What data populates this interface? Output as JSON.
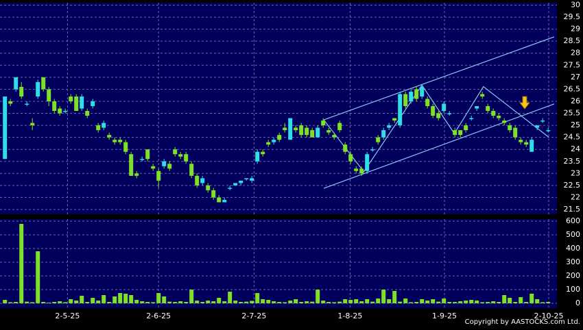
{
  "chart_data": {
    "type": "candlestick",
    "copyright": "Copyright by AASTOCKS.com Ltd.",
    "up_color": "#33dde8",
    "down_color": "#7ee02a",
    "volume_color": "#7ee02a",
    "line_color": "#8ec8f0",
    "grid": true,
    "xlim": [
      -0.9,
      100.6
    ],
    "xticks": [
      {
        "value": 11.4,
        "label": "2-5-25"
      },
      {
        "value": 28,
        "label": "2-6-25"
      },
      {
        "value": 45.4,
        "label": "2-7-25"
      },
      {
        "value": 62.9,
        "label": "1-8-25"
      },
      {
        "value": 80.1,
        "label": "1-9-25"
      },
      {
        "value": 99.1,
        "label": "2-10-25"
      }
    ],
    "ylim": [
      21.3,
      30.1
    ],
    "yticks": [
      21.5,
      22,
      22.5,
      23,
      23.5,
      24,
      24.5,
      25,
      25.5,
      26,
      26.5,
      27,
      27.5,
      28,
      28.5,
      29,
      29.5,
      30
    ],
    "y2lim": [
      0,
      615
    ],
    "y2ticks": [
      0,
      100,
      200,
      300,
      400,
      500,
      600
    ],
    "open": [
      23.6,
      26.0,
      26.5,
      26.6,
      25.9,
      25.1,
      26.2,
      27.0,
      26.5,
      26.0,
      25.7,
      25.6,
      26.2,
      26.2,
      25.7,
      25.6,
      25.8,
      25.0,
      24.9,
      24.6,
      24.4,
      24.4,
      24.3,
      23.8,
      23.0,
      23.6,
      24.0,
      23.3,
      23.1,
      23.3,
      23.4,
      24.0,
      23.8,
      23.8,
      23.4,
      22.9,
      22.6,
      22.5,
      22.3,
      22.0,
      21.8,
      22.4,
      22.5,
      22.6,
      22.8,
      22.7,
      23.5,
      23.9,
      24.3,
      24.3,
      24.6,
      24.9,
      24.4,
      24.9,
      25.0,
      24.9,
      24.8,
      24.5,
      25.2,
      24.8,
      24.6,
      25.1,
      24.2,
      23.8,
      23.2,
      23.2,
      23.1,
      24.0,
      24.5,
      24.5,
      24.9,
      25.3,
      25.0,
      26.3,
      26.0,
      26.5,
      26.2,
      26.1,
      25.8,
      25.5,
      25.6,
      25.5,
      24.8,
      24.8,
      25.0,
      25.3,
      25.7,
      26.3,
      25.8,
      25.6,
      25.4,
      25.2,
      25.0,
      24.9,
      24.4,
      24.3,
      23.9,
      24.9,
      25.2,
      24.8
    ],
    "high": [
      26.2,
      26.1,
      27.0,
      26.8,
      26.0,
      25.3,
      26.9,
      27.0,
      26.6,
      26.1,
      25.8,
      25.7,
      26.3,
      26.3,
      26.3,
      25.7,
      26.1,
      25.1,
      25.2,
      24.7,
      24.5,
      24.5,
      24.4,
      23.9,
      23.1,
      23.7,
      24.0,
      23.4,
      23.2,
      23.6,
      23.5,
      24.1,
      23.9,
      23.9,
      23.5,
      23.0,
      22.9,
      22.6,
      22.4,
      22.1,
      22.0,
      22.5,
      22.6,
      22.7,
      22.8,
      22.9,
      24.0,
      24.0,
      24.4,
      24.5,
      24.7,
      25.1,
      25.3,
      25.0,
      25.1,
      25.0,
      24.9,
      25.0,
      25.3,
      24.9,
      24.7,
      25.2,
      24.3,
      23.9,
      23.3,
      23.3,
      23.9,
      24.1,
      24.6,
      24.9,
      25.1,
      25.3,
      26.4,
      26.4,
      26.5,
      26.6,
      26.7,
      26.2,
      25.9,
      25.6,
      26.0,
      25.6,
      24.9,
      24.8,
      25.1,
      25.4,
      25.8,
      26.4,
      25.9,
      25.7,
      25.5,
      25.3,
      25.1,
      25.0,
      24.5,
      24.4,
      24.5,
      25.0,
      25.3,
      24.9
    ],
    "low": [
      23.6,
      25.8,
      26.4,
      26.1,
      25.8,
      24.8,
      26.1,
      26.4,
      25.8,
      25.5,
      25.4,
      25.5,
      25.9,
      25.6,
      25.6,
      25.3,
      25.7,
      24.7,
      24.8,
      24.4,
      24.2,
      24.2,
      23.8,
      22.9,
      22.8,
      23.5,
      23.5,
      23.1,
      22.4,
      23.2,
      23.1,
      23.7,
      23.6,
      23.4,
      22.8,
      22.4,
      22.5,
      22.2,
      21.9,
      21.8,
      21.8,
      22.3,
      22.5,
      22.5,
      22.7,
      22.6,
      23.4,
      23.7,
      24.1,
      24.2,
      24.3,
      24.7,
      24.4,
      24.7,
      24.5,
      24.5,
      24.5,
      24.5,
      24.9,
      24.6,
      24.4,
      24.7,
      23.8,
      23.4,
      23.0,
      22.9,
      23.0,
      23.9,
      24.2,
      24.4,
      24.8,
      25.1,
      24.9,
      25.7,
      25.9,
      26.0,
      26.1,
      25.7,
      25.3,
      25.2,
      25.5,
      25.4,
      24.5,
      24.5,
      24.7,
      25.2,
      25.6,
      26.1,
      25.5,
      25.3,
      25.2,
      25.0,
      24.7,
      24.4,
      24.2,
      24.1,
      23.9,
      24.8,
      25.1,
      24.7
    ],
    "close": [
      26.2,
      25.9,
      27.0,
      26.2,
      25.9,
      25.0,
      26.8,
      26.5,
      26.0,
      25.6,
      25.5,
      25.6,
      26.0,
      25.6,
      26.2,
      25.4,
      26.0,
      24.8,
      25.1,
      24.5,
      24.3,
      24.3,
      23.9,
      22.9,
      22.9,
      23.6,
      23.6,
      23.2,
      22.7,
      23.5,
      23.2,
      23.8,
      23.7,
      23.5,
      22.9,
      22.5,
      22.8,
      22.3,
      22.0,
      21.8,
      21.9,
      22.4,
      22.6,
      22.7,
      22.8,
      22.8,
      23.9,
      23.8,
      24.2,
      24.4,
      24.4,
      24.8,
      25.3,
      24.8,
      24.6,
      24.6,
      24.5,
      24.9,
      25.0,
      24.7,
      24.5,
      24.8,
      23.9,
      23.5,
      23.1,
      23.0,
      23.8,
      24.0,
      24.3,
      24.8,
      25.0,
      25.2,
      26.3,
      25.8,
      26.4,
      26.1,
      26.6,
      25.8,
      25.4,
      25.3,
      25.9,
      25.5,
      24.6,
      24.6,
      24.8,
      25.3,
      25.8,
      26.2,
      25.6,
      25.4,
      25.3,
      25.1,
      24.8,
      24.5,
      24.3,
      24.2,
      24.4,
      25.0,
      25.2,
      24.8
    ],
    "volume": [
      25,
      8,
      10,
      580,
      12,
      8,
      380,
      10,
      5,
      10,
      15,
      8,
      30,
      20,
      55,
      10,
      40,
      20,
      60,
      10,
      50,
      75,
      70,
      60,
      25,
      15,
      10,
      8,
      75,
      50,
      12,
      10,
      15,
      10,
      100,
      20,
      10,
      20,
      15,
      40,
      15,
      85,
      20,
      10,
      12,
      18,
      75,
      30,
      25,
      15,
      10,
      8,
      20,
      30,
      10,
      15,
      12,
      100,
      20,
      10,
      8,
      12,
      30,
      25,
      30,
      15,
      30,
      12,
      35,
      100,
      30,
      90,
      12,
      35,
      8,
      10,
      30,
      20,
      30,
      12,
      35,
      10,
      10,
      15,
      20,
      25,
      20,
      8,
      10,
      15,
      10,
      60,
      40,
      10,
      45,
      10,
      70,
      30,
      8,
      10
    ],
    "trend_lines": [
      {
        "x": [
          58.1,
          100.1
        ],
        "y": [
          25.23,
          28.68
        ]
      },
      {
        "x": [
          58.1,
          100.1
        ],
        "y": [
          22.38,
          25.89
        ]
      },
      {
        "x": [
          58.1,
          65.4,
          76,
          81.9,
          87.2,
          99.1
        ],
        "y": [
          25.23,
          23.07,
          26.67,
          24.66,
          26.61,
          24.51
        ]
      }
    ]
  }
}
